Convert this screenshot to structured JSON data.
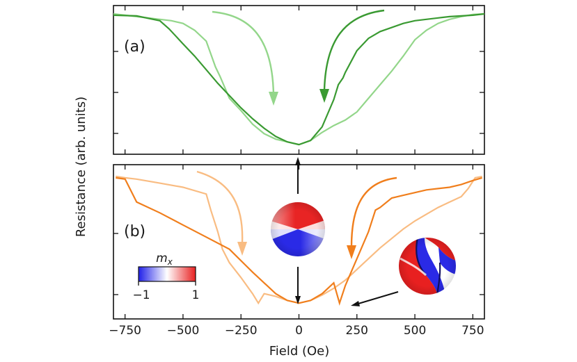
{
  "chart_data": [
    {
      "type": "line",
      "panel_label": "(a)",
      "xlim": [
        -800,
        800
      ],
      "ylim": [
        0,
        1
      ],
      "grid": false,
      "series": [
        {
          "color": "#3a9a32",
          "x": [
            -800,
            -700,
            -600,
            -560,
            -500,
            -450,
            -400,
            -350,
            -300,
            -250,
            -200,
            -150,
            -100,
            -50,
            0,
            50,
            100,
            150,
            170,
            190,
            200,
            250,
            300,
            350,
            400,
            450,
            500,
            550,
            600,
            650,
            700,
            750,
            800
          ],
          "y": [
            0.98,
            0.975,
            0.94,
            0.88,
            0.77,
            0.68,
            0.58,
            0.48,
            0.39,
            0.3,
            0.22,
            0.15,
            0.09,
            0.05,
            0.03,
            0.06,
            0.16,
            0.36,
            0.47,
            0.52,
            0.56,
            0.72,
            0.81,
            0.86,
            0.89,
            0.92,
            0.94,
            0.95,
            0.96,
            0.97,
            0.975,
            0.98,
            0.99
          ]
        },
        {
          "color": "#93d68a",
          "x": [
            -800,
            -750,
            -700,
            -650,
            -600,
            -550,
            -500,
            -450,
            -400,
            -360,
            -340,
            -300,
            -250,
            -200,
            -150,
            -100,
            -50,
            0,
            50,
            100,
            150,
            200,
            250,
            300,
            350,
            400,
            450,
            500,
            550,
            600,
            650,
            700,
            750,
            800
          ],
          "y": [
            0.99,
            0.98,
            0.97,
            0.96,
            0.95,
            0.94,
            0.92,
            0.87,
            0.79,
            0.6,
            0.53,
            0.37,
            0.28,
            0.18,
            0.11,
            0.07,
            0.05,
            0.03,
            0.06,
            0.12,
            0.17,
            0.21,
            0.27,
            0.37,
            0.47,
            0.57,
            0.68,
            0.8,
            0.87,
            0.92,
            0.95,
            0.97,
            0.985,
            0.99
          ]
        }
      ],
      "arrows": [
        {
          "color": "#93d68a",
          "direction": "down",
          "near_x": -120
        },
        {
          "color": "#3a9a32",
          "direction": "down",
          "near_x": 110
        }
      ]
    },
    {
      "type": "line",
      "panel_label": "(b)",
      "xlabel": "Field (Oe)",
      "ylabel": "Resistance (arb. units)",
      "xlim": [
        -800,
        800
      ],
      "ylim": [
        0,
        1
      ],
      "xticks": [
        -750,
        -500,
        -250,
        0,
        250,
        500,
        750
      ],
      "xtick_labels": [
        "−750",
        "−500",
        "−250",
        "0",
        "250",
        "500",
        "750"
      ],
      "grid": false,
      "series": [
        {
          "color": "#f07e1c",
          "x": [
            -790,
            -750,
            -700,
            -600,
            -500,
            -400,
            -300,
            -200,
            -100,
            -50,
            0,
            50,
            100,
            150,
            175,
            200,
            250,
            300,
            330,
            350,
            400,
            450,
            500,
            550,
            600,
            650,
            700,
            750,
            790
          ],
          "y": [
            0.98,
            0.97,
            0.8,
            0.72,
            0.63,
            0.54,
            0.45,
            0.28,
            0.12,
            0.07,
            0.05,
            0.07,
            0.12,
            0.2,
            0.05,
            0.18,
            0.38,
            0.58,
            0.74,
            0.76,
            0.83,
            0.85,
            0.87,
            0.89,
            0.9,
            0.91,
            0.93,
            0.96,
            0.98
          ]
        },
        {
          "color": "#f9bc82",
          "x": [
            -790,
            -750,
            -700,
            -600,
            -500,
            -400,
            -380,
            -350,
            -330,
            -300,
            -250,
            -200,
            -175,
            -150,
            -100,
            -50,
            0,
            50,
            100,
            150,
            200,
            250,
            300,
            350,
            400,
            450,
            500,
            550,
            600,
            650,
            700,
            730,
            760,
            790
          ],
          "y": [
            0.99,
            0.98,
            0.97,
            0.94,
            0.91,
            0.86,
            0.74,
            0.58,
            0.45,
            0.35,
            0.24,
            0.12,
            0.05,
            0.12,
            0.1,
            0.07,
            0.05,
            0.07,
            0.11,
            0.16,
            0.22,
            0.3,
            0.38,
            0.46,
            0.53,
            0.6,
            0.66,
            0.71,
            0.76,
            0.8,
            0.84,
            0.9,
            0.98,
            0.99
          ]
        }
      ],
      "arrows": [
        {
          "color": "#f9bc82",
          "direction": "down",
          "near_x": -250
        },
        {
          "color": "#f07e1c",
          "direction": "down",
          "near_x": 230
        }
      ],
      "colorbar": {
        "label": "m",
        "label_subscript": "x",
        "min_label": "−1",
        "max_label": "1",
        "colors": [
          "#2222ee",
          "#ffffff",
          "#ee2222"
        ]
      },
      "insets": [
        "vortex-state",
        "domain-wall-state"
      ]
    }
  ]
}
